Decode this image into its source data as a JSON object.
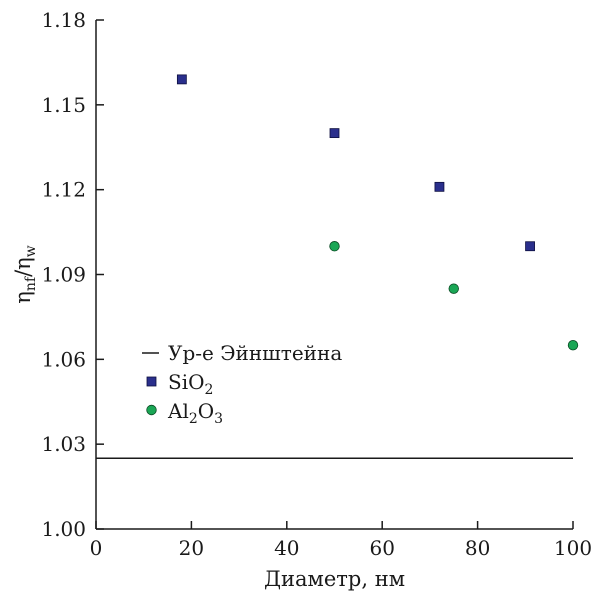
{
  "chart_data": {
    "type": "scatter",
    "xlabel": "Диаметр, нм",
    "ylabel": {
      "main": "η",
      "sub1": "nf",
      "sep": "/",
      "main2": "η",
      "sub2": "w"
    },
    "xlim": [
      0,
      100
    ],
    "ylim": [
      1.0,
      1.18
    ],
    "x_ticks": [
      0,
      20,
      40,
      60,
      80,
      100
    ],
    "y_ticks": [
      "1.00",
      "1.03",
      "1.06",
      "1.09",
      "1.12",
      "1.15",
      "1.18"
    ],
    "legend_position": "center-left",
    "series": [
      {
        "name": "SiO2",
        "legend": {
          "base": "SiO",
          "sub": "2",
          "rest": ""
        },
        "marker": "square",
        "color": "#2a2f8c",
        "points": [
          {
            "x": 18,
            "y": 1.159
          },
          {
            "x": 50,
            "y": 1.14
          },
          {
            "x": 72,
            "y": 1.121
          },
          {
            "x": 91,
            "y": 1.1
          }
        ]
      },
      {
        "name": "Al2O3",
        "legend": {
          "base": "Al",
          "sub": "2",
          "rest": "O",
          "sub2": "3"
        },
        "marker": "circle",
        "color": "#1aa655",
        "points": [
          {
            "x": 50,
            "y": 1.1
          },
          {
            "x": 75,
            "y": 1.085
          },
          {
            "x": 100,
            "y": 1.065
          }
        ]
      }
    ],
    "lines": [
      {
        "name": "Ур-е Эйнштейна",
        "y": 1.025,
        "x_range": [
          0,
          100
        ],
        "color": "#1a1a1a"
      }
    ]
  }
}
